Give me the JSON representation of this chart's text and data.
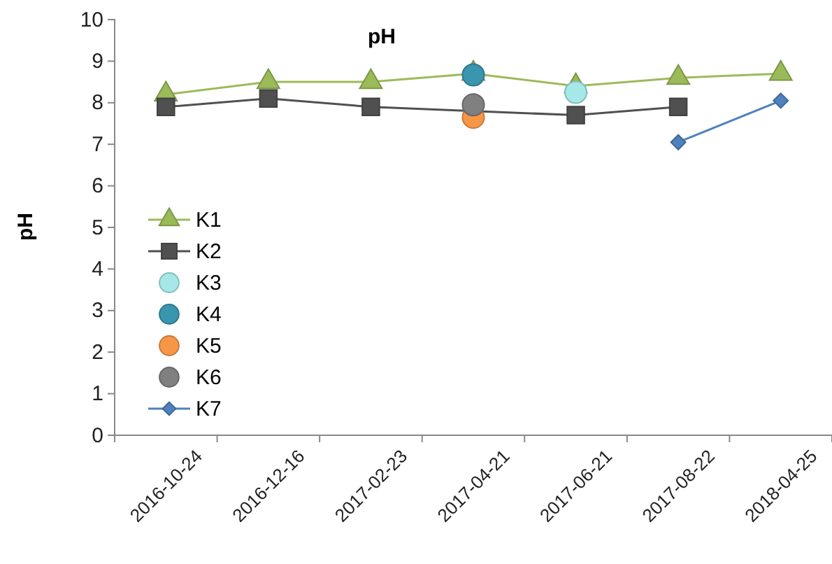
{
  "chart_data": {
    "type": "line",
    "title": "pH",
    "ylabel": "pH",
    "categories": [
      "2016-10-24",
      "2016-12-16",
      "2017-02-23",
      "2017-04-21",
      "2017-06-21",
      "2017-08-22",
      "2018-04-25"
    ],
    "ylim": [
      0,
      10
    ],
    "yticks": [
      0,
      1,
      2,
      3,
      4,
      5,
      6,
      7,
      8,
      9,
      10
    ],
    "grid": false,
    "legend": "left",
    "series": [
      {
        "name": "K1",
        "type": "line",
        "marker": "triangle",
        "color": "#9bbb59",
        "values": [
          8.2,
          8.5,
          8.5,
          8.7,
          8.4,
          8.6,
          8.7
        ]
      },
      {
        "name": "K2",
        "type": "line",
        "marker": "square",
        "color": "#505050",
        "values": [
          7.9,
          8.1,
          7.9,
          7.8,
          7.7,
          7.9,
          null
        ]
      },
      {
        "name": "K3",
        "type": "scatter",
        "marker": "circle",
        "color": "#a6e8e8",
        "values": [
          null,
          null,
          null,
          null,
          8.25,
          null,
          null
        ]
      },
      {
        "name": "K4",
        "type": "scatter",
        "marker": "circle",
        "color": "#3a95ae",
        "values": [
          null,
          null,
          null,
          8.67,
          null,
          null,
          null
        ]
      },
      {
        "name": "K5",
        "type": "scatter",
        "marker": "circle",
        "color": "#f79646",
        "values": [
          null,
          null,
          null,
          7.65,
          null,
          null,
          null
        ]
      },
      {
        "name": "K6",
        "type": "scatter",
        "marker": "circle",
        "color": "#808080",
        "values": [
          null,
          null,
          null,
          7.95,
          null,
          null,
          null
        ]
      },
      {
        "name": "K7",
        "type": "line",
        "marker": "diamond",
        "color": "#4f81bd",
        "values": [
          null,
          null,
          null,
          null,
          null,
          7.05,
          8.05
        ]
      }
    ]
  }
}
